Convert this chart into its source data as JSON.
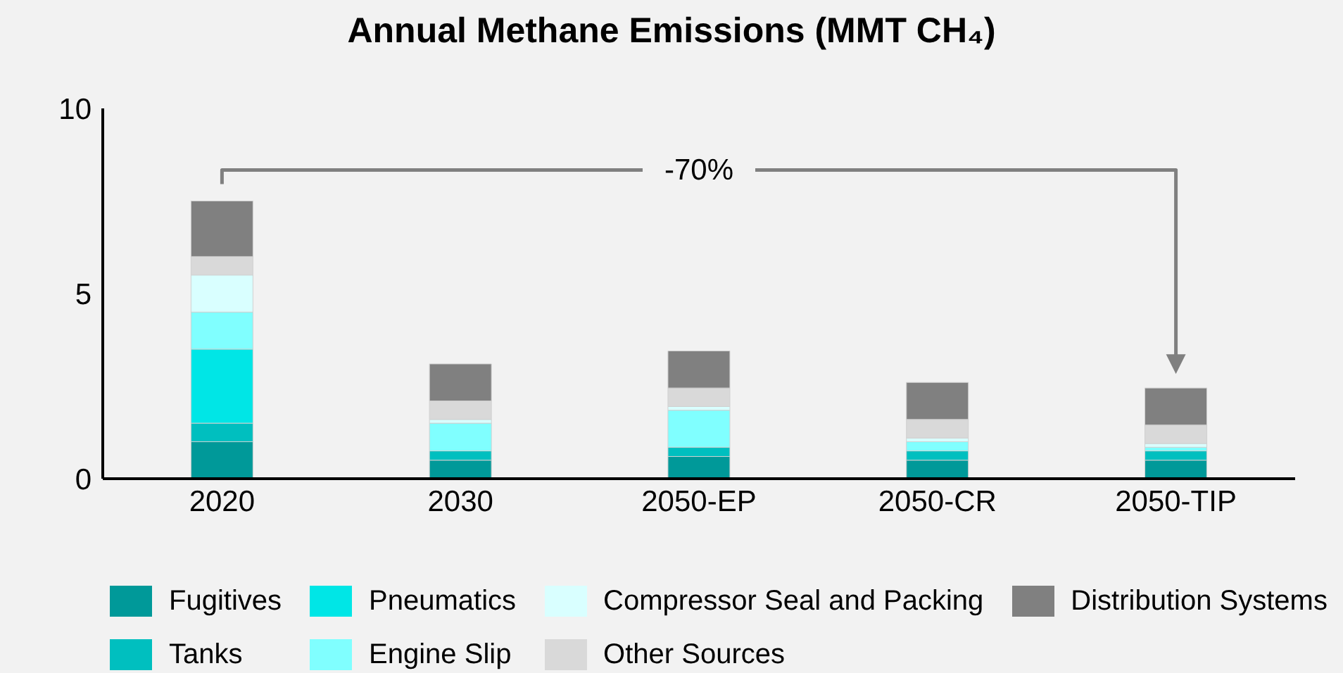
{
  "chart_data": {
    "type": "bar",
    "title": "Annual Methane Emissions (MMT CH₄)",
    "categories": [
      "2020",
      "2030",
      "2050-EP",
      "2050-CR",
      "2050-TIP"
    ],
    "stacked": true,
    "ylim": [
      0,
      10
    ],
    "yticks": [
      0,
      5,
      10
    ],
    "grid": false,
    "legend": "bottom",
    "annotations": [
      "-70%"
    ],
    "series": [
      {
        "name": "Fugitives",
        "color": "#009999",
        "values": [
          1.0,
          0.5,
          0.6,
          0.5,
          0.5
        ]
      },
      {
        "name": "Tanks",
        "color": "#00bfbf",
        "values": [
          0.5,
          0.25,
          0.25,
          0.25,
          0.25
        ]
      },
      {
        "name": "Pneumatics",
        "color": "#00e6e6",
        "values": [
          2.0,
          0,
          0,
          0,
          0
        ]
      },
      {
        "name": "Engine Slip",
        "color": "#80ffff",
        "values": [
          1.0,
          0.75,
          1.0,
          0.25,
          0.1
        ]
      },
      {
        "name": "Compressor Seal and Packing",
        "color": "#d9ffff",
        "values": [
          1.0,
          0.1,
          0.1,
          0.1,
          0.1
        ]
      },
      {
        "name": "Other Sources",
        "color": "#d9d9d9",
        "values": [
          0.5,
          0.5,
          0.5,
          0.5,
          0.5
        ]
      },
      {
        "name": "Distribution Systems",
        "color": "#808080",
        "values": [
          1.5,
          1.0,
          1.0,
          1.0,
          1.0
        ]
      }
    ]
  }
}
